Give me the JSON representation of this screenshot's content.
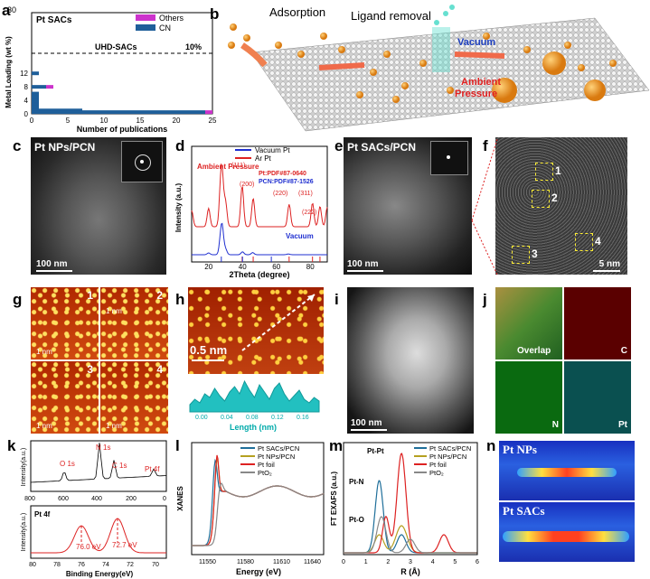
{
  "panels": {
    "a": "a",
    "b": "b",
    "c": "c",
    "d": "d",
    "e": "e",
    "f": "f",
    "g": "g",
    "h": "h",
    "i": "i",
    "j": "j",
    "k": "k",
    "l": "l",
    "m": "m",
    "n": "n"
  },
  "panel_a": {
    "title": "Pt SACs",
    "ylabel": "Metal Loading (wt %)",
    "xlabel": "Number of publications",
    "threshold_label": "UHD-SACs",
    "threshold_value": "10%",
    "legend": [
      "Others",
      "CN"
    ],
    "colors": {
      "others": "#cc33cc",
      "cn": "#1f5f9a"
    }
  },
  "panel_b": {
    "adsorption": "Adsorption",
    "ligand_removal": "Ligand removal",
    "vacuum": "Vacuum",
    "ambient": "Ambient\nPressure"
  },
  "panel_c": {
    "title": "Pt NPs/PCN",
    "scale": "100 nm"
  },
  "panel_d": {
    "legend": [
      "Vacuum Pt",
      "Ar Pt"
    ],
    "annot_ambient": "Ambient Pressure",
    "annot_vacuum": "Vacuum",
    "pdf_pt": "Pt:PDF#87-0640",
    "pdf_pcn": "PCN:PDF#87-1526",
    "xlabel": "2Theta (degree)",
    "ylabel": "Intensity (a.u.)",
    "peaks": [
      "(111)",
      "(200)",
      "(220)",
      "(311)",
      "(222)"
    ]
  },
  "panel_e": {
    "title": "Pt SACs/PCN",
    "scale": "100 nm"
  },
  "panel_f": {
    "labels": [
      "1",
      "2",
      "3",
      "4"
    ],
    "scale": "5 nm"
  },
  "panel_g": {
    "labels": [
      "1",
      "2",
      "3",
      "4"
    ],
    "scale": "1 nm"
  },
  "panel_h": {
    "scale": "0.5 nm",
    "xlabel": "Length (nm)"
  },
  "panel_i": {
    "scale": "100 nm"
  },
  "panel_j": {
    "labels": [
      "Overlap",
      "C",
      "N",
      "Pt"
    ]
  },
  "panel_k": {
    "top_peaks": [
      "O 1s",
      "N 1s",
      "C 1s",
      "Pt 4f"
    ],
    "bottom_title": "Pt 4f",
    "peak_values": [
      "76.0 eV",
      "72.7 eV"
    ],
    "ylabel": "Intensity(a.u.)",
    "xlabel": "Binding Energy(eV)"
  },
  "panel_l": {
    "legend": [
      "Pt SACs/PCN",
      "Pt NPs/PCN",
      "Pt foil",
      "PtO₂"
    ],
    "ylabel": "XANES",
    "xlabel": "Energy (eV)",
    "colors": [
      "#1f6f9a",
      "#b5a020",
      "#dd2222",
      "#888888"
    ]
  },
  "panel_m": {
    "legend": [
      "Pt SACs/PCN",
      "Pt NPs/PCN",
      "Pt foil",
      "PtO₂"
    ],
    "annotations": [
      "Pt-Pt",
      "Pt-N",
      "Pt-O"
    ],
    "ylabel": "FT EXAFS (a.u.)",
    "xlabel": "R (Å)"
  },
  "panel_n": {
    "labels": [
      "Pt NPs",
      "Pt SACs"
    ]
  },
  "chart_data": [
    {
      "type": "bar",
      "orientation": "horizontal",
      "xlabel": "Number of publications",
      "ylabel": "Metal Loading (wt %)",
      "xlim": [
        0,
        25
      ],
      "ylim": [
        0,
        30
      ],
      "categories_y": [
        0.5,
        1,
        1.5,
        2,
        2.5,
        3,
        3.5,
        4,
        4.5,
        5,
        6,
        8,
        12
      ],
      "series": [
        {
          "name": "CN",
          "values": [
            24,
            7,
            1,
            1,
            1,
            1,
            1,
            1,
            1,
            1,
            1,
            2,
            1
          ]
        },
        {
          "name": "Others",
          "values": [
            1,
            0,
            0,
            0,
            0,
            0,
            0,
            0,
            0,
            0,
            0,
            1,
            0
          ]
        }
      ]
    },
    {
      "type": "line",
      "xlabel": "2Theta (degree)",
      "xlim": [
        10,
        90
      ],
      "series": [
        {
          "name": "Vacuum Pt",
          "x": [
            10,
            20,
            27,
            28,
            30,
            40,
            46,
            67,
            81,
            90
          ],
          "y": [
            0.2,
            0.25,
            0.5,
            0.9,
            0.35,
            0.28,
            0.26,
            0.22,
            0.2,
            0.2
          ]
        },
        {
          "name": "Ar Pt",
          "x": [
            10,
            20,
            27,
            28,
            30,
            39.8,
            46.3,
            67.5,
            81.3,
            85.7,
            90
          ],
          "y": [
            0.6,
            0.65,
            0.9,
            1.3,
            0.8,
            1.2,
            0.9,
            0.75,
            0.78,
            0.7,
            0.68
          ]
        }
      ]
    },
    {
      "type": "line",
      "xlabel": "Energy (eV)",
      "xlim": [
        11540,
        11660
      ],
      "series": [
        {
          "name": "Pt SACs/PCN"
        },
        {
          "name": "Pt NPs/PCN"
        },
        {
          "name": "Pt foil"
        },
        {
          "name": "PtO₂"
        }
      ]
    },
    {
      "type": "line",
      "xlabel": "R (Å)",
      "xlim": [
        0,
        6
      ],
      "series": [
        {
          "name": "Pt SACs/PCN"
        },
        {
          "name": "Pt NPs/PCN"
        },
        {
          "name": "Pt foil"
        },
        {
          "name": "PtO₂"
        }
      ]
    }
  ]
}
